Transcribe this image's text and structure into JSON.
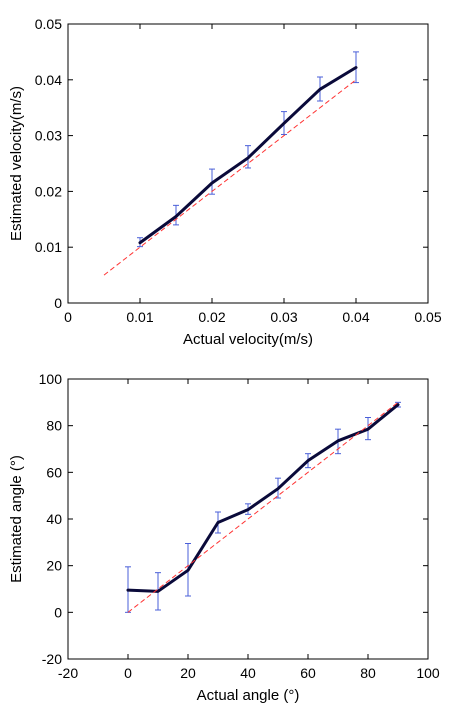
{
  "colors": {
    "line": "#0a0a3a",
    "error": "#4a5fd8",
    "reference": "#ff3333",
    "axes": "#000000"
  },
  "chart_data": [
    {
      "type": "line",
      "xlabel": "Actual velocity(m/s)",
      "ylabel": "Estimated velocity(m/s)",
      "xlim": [
        0,
        0.05
      ],
      "ylim": [
        0,
        0.05
      ],
      "xticks": [
        0,
        0.01,
        0.02,
        0.03,
        0.04,
        0.05
      ],
      "yticks": [
        0,
        0.01,
        0.02,
        0.03,
        0.04,
        0.05
      ],
      "xtick_labels": [
        "0",
        "0.01",
        "0.02",
        "0.03",
        "0.04",
        "0.05"
      ],
      "ytick_labels": [
        "0",
        "0.01",
        "0.02",
        "0.03",
        "0.04",
        "0.05"
      ],
      "grid": false,
      "series": [
        {
          "style": "solid",
          "x": [
            0.01,
            0.015,
            0.02,
            0.025,
            0.03,
            0.035,
            0.04
          ],
          "y": [
            0.0108,
            0.0155,
            0.0215,
            0.026,
            0.0322,
            0.0383,
            0.0422
          ],
          "err_low": [
            0.0101,
            0.014,
            0.0195,
            0.0242,
            0.0302,
            0.0362,
            0.0395
          ],
          "err_high": [
            0.0117,
            0.0175,
            0.024,
            0.0282,
            0.0343,
            0.0405,
            0.045
          ]
        },
        {
          "style": "dashed",
          "x": [
            0.005,
            0.04
          ],
          "y": [
            0.005,
            0.04
          ]
        }
      ]
    },
    {
      "type": "line",
      "xlabel": "Actual angle (°)",
      "ylabel": "Estimated angle (°)",
      "xlim": [
        -20,
        100
      ],
      "ylim": [
        -20,
        100
      ],
      "xticks": [
        -20,
        0,
        20,
        40,
        60,
        80,
        100
      ],
      "yticks": [
        -20,
        0,
        20,
        40,
        60,
        80,
        100
      ],
      "xtick_labels": [
        "-20",
        "0",
        "20",
        "40",
        "60",
        "80",
        "100"
      ],
      "ytick_labels": [
        "-20",
        "0",
        "20",
        "40",
        "60",
        "80",
        "100"
      ],
      "grid": false,
      "series": [
        {
          "style": "solid",
          "x": [
            0,
            10,
            20,
            30,
            40,
            50,
            60,
            70,
            80,
            90
          ],
          "y": [
            9.5,
            9,
            18,
            38.5,
            44,
            53,
            65,
            73.5,
            78.5,
            89
          ],
          "err_low": [
            0,
            1,
            7,
            34,
            42,
            49,
            62,
            68,
            74,
            88
          ],
          "err_high": [
            19.5,
            17,
            29.5,
            43,
            46.5,
            57.5,
            68,
            78.5,
            83.5,
            90
          ]
        },
        {
          "style": "dashed",
          "x": [
            0,
            90
          ],
          "y": [
            0,
            90
          ]
        }
      ]
    }
  ]
}
